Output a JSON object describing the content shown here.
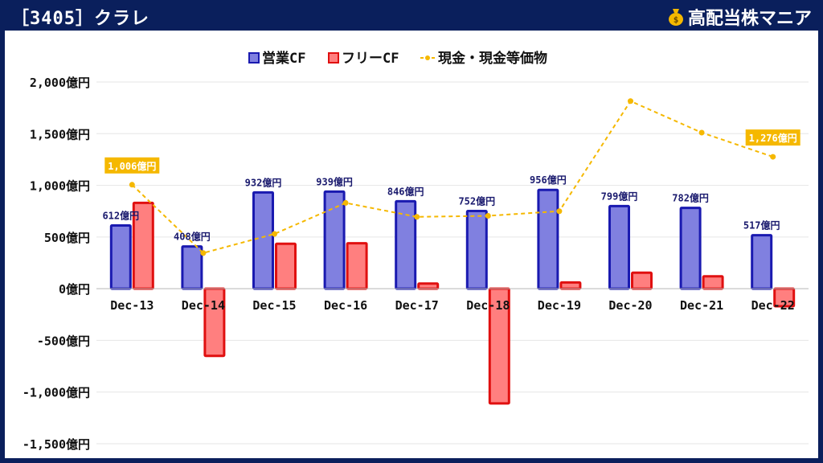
{
  "header": {
    "title": "［3405］クラレ",
    "brand": "高配当株マニア",
    "brand_icon": "money-bag-icon"
  },
  "colors": {
    "header_bg": "#0a1f5c",
    "operating_fill": "#8080e0",
    "operating_stroke": "#1a1ab0",
    "free_fill": "#ff7f7f",
    "free_stroke": "#e01010",
    "cash_line": "#f5b800",
    "label_bg": "#f5b800"
  },
  "chart_data": {
    "type": "bar",
    "categories": [
      "Dec-13",
      "Dec-14",
      "Dec-15",
      "Dec-16",
      "Dec-17",
      "Dec-18",
      "Dec-19",
      "Dec-20",
      "Dec-21",
      "Dec-22"
    ],
    "series": [
      {
        "name": "営業CF",
        "type": "bar",
        "values": [
          612,
          408,
          932,
          939,
          846,
          752,
          956,
          799,
          782,
          517
        ]
      },
      {
        "name": "フリーCF",
        "type": "bar",
        "values": [
          830,
          -650,
          435,
          440,
          50,
          -1110,
          60,
          155,
          120,
          -170
        ]
      },
      {
        "name": "現金・現金等価物",
        "type": "line",
        "values": [
          1006,
          345,
          530,
          830,
          695,
          705,
          750,
          1815,
          1510,
          1276
        ]
      }
    ],
    "bar_labels": [
      "612億円",
      "408億円",
      "932億円",
      "939億円",
      "846億円",
      "752億円",
      "956億円",
      "799億円",
      "782億円",
      "517億円"
    ],
    "line_callouts": [
      {
        "index": 0,
        "text": "1,006億円"
      },
      {
        "index": 9,
        "text": "1,276億円"
      }
    ],
    "yticks": [
      2000,
      1500,
      1000,
      500,
      0,
      -500,
      -1000,
      -1500
    ],
    "ytick_labels": [
      "2,000億円",
      "1,500億円",
      "1,000億円",
      "500億円",
      "0億円",
      "-500億円",
      "-1,000億円",
      "-1,500億円"
    ],
    "ylim": [
      -1500,
      2000
    ],
    "legend_position": "top-center",
    "grid": true
  }
}
